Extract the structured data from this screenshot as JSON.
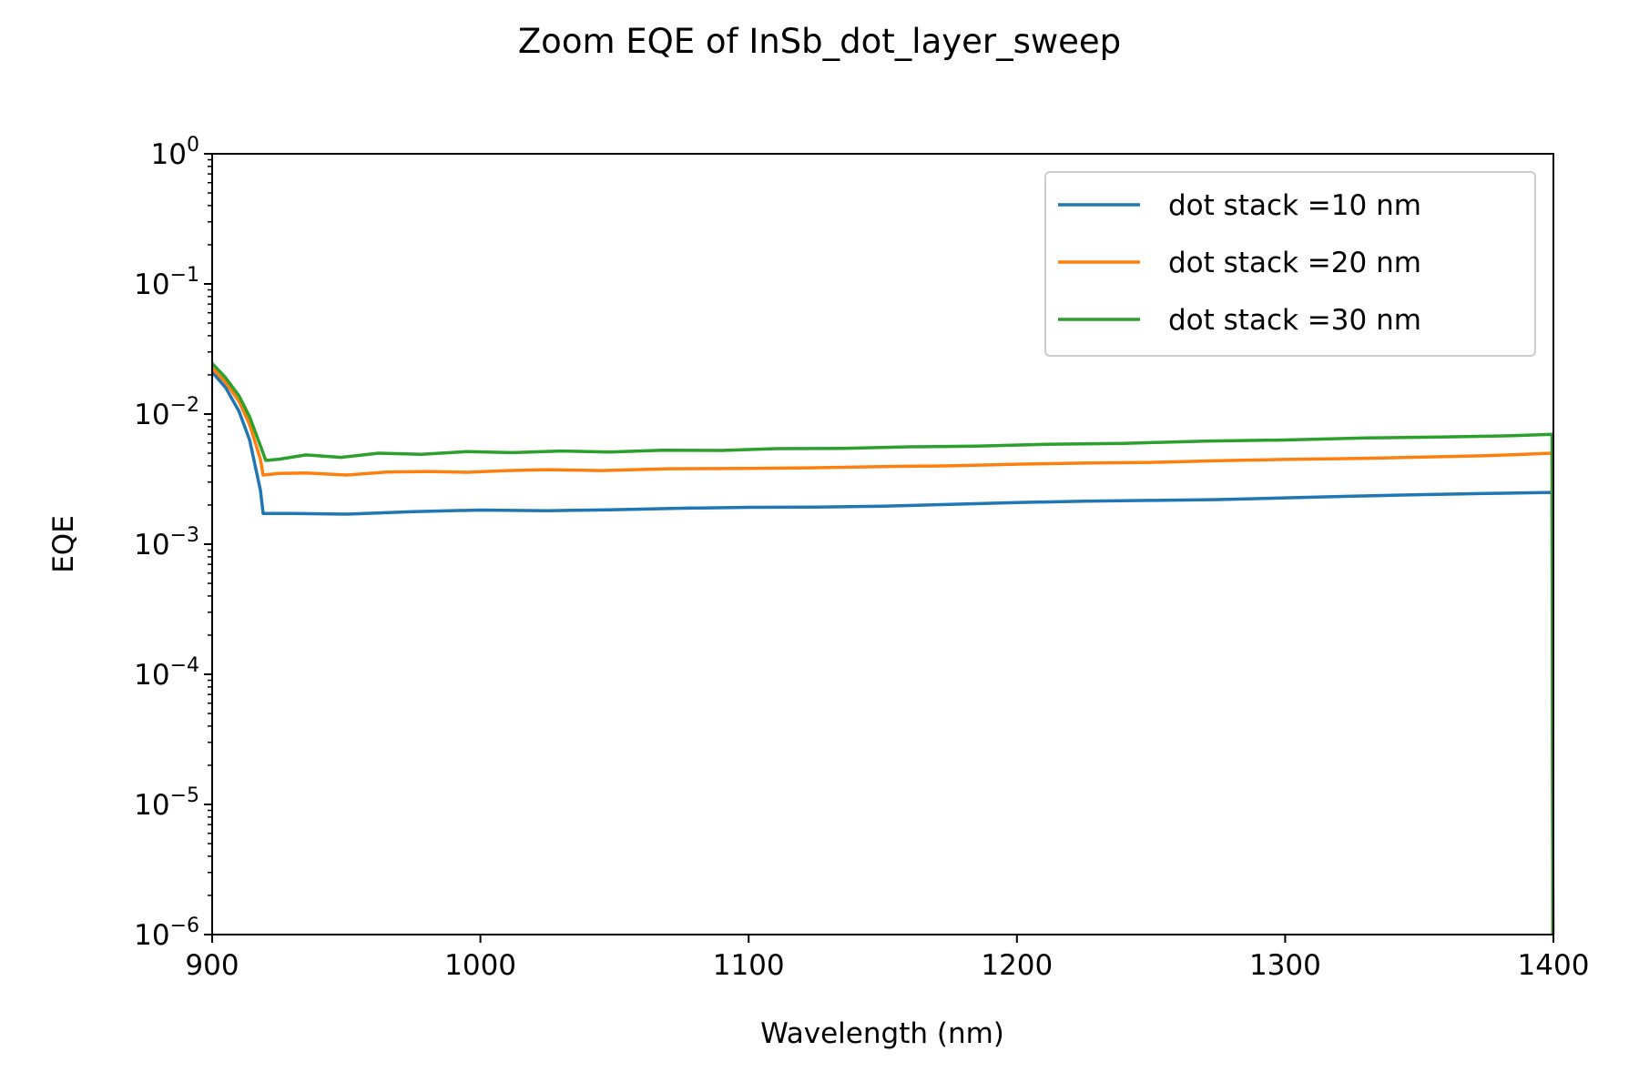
{
  "chart_data": {
    "type": "line",
    "title": "Zoom EQE of InSb_dot_layer_sweep",
    "xlabel": "Wavelength (nm)",
    "ylabel": "EQE",
    "xlim": [
      900,
      1400
    ],
    "ylim": [
      1e-06,
      1
    ],
    "yscale": "log",
    "grid": false,
    "legend_position": "top-right",
    "x_ticks": [
      {
        "value": 900,
        "label": "900"
      },
      {
        "value": 1000,
        "label": "1000"
      },
      {
        "value": 1100,
        "label": "1100"
      },
      {
        "value": 1200,
        "label": "1200"
      },
      {
        "value": 1300,
        "label": "1300"
      },
      {
        "value": 1400,
        "label": "1400"
      }
    ],
    "y_ticks": [
      {
        "value": 1e-06,
        "base": "10",
        "exponent": "−6"
      },
      {
        "value": 1e-05,
        "base": "10",
        "exponent": "−5"
      },
      {
        "value": 0.0001,
        "base": "10",
        "exponent": "−4"
      },
      {
        "value": 0.001,
        "base": "10",
        "exponent": "−3"
      },
      {
        "value": 0.01,
        "base": "10",
        "exponent": "−2"
      },
      {
        "value": 0.1,
        "base": "10",
        "exponent": "−1"
      },
      {
        "value": 1,
        "base": "10",
        "exponent": "0"
      }
    ],
    "series": [
      {
        "name": "dot stack =10 nm",
        "color": "#1f77b4",
        "points": [
          [
            900,
            0.021
          ],
          [
            905,
            0.016
          ],
          [
            910,
            0.0105
          ],
          [
            914,
            0.0063
          ],
          [
            918,
            0.0026
          ],
          [
            919,
            0.00172
          ],
          [
            930,
            0.00172
          ],
          [
            950,
            0.0017
          ],
          [
            975,
            0.00178
          ],
          [
            1000,
            0.00183
          ],
          [
            1025,
            0.00181
          ],
          [
            1050,
            0.00184
          ],
          [
            1075,
            0.00189
          ],
          [
            1100,
            0.00192
          ],
          [
            1125,
            0.00193
          ],
          [
            1150,
            0.00196
          ],
          [
            1175,
            0.00202
          ],
          [
            1200,
            0.00209
          ],
          [
            1225,
            0.00214
          ],
          [
            1250,
            0.00217
          ],
          [
            1275,
            0.0022
          ],
          [
            1300,
            0.00227
          ],
          [
            1325,
            0.00234
          ],
          [
            1350,
            0.0024
          ],
          [
            1375,
            0.00245
          ],
          [
            1399.5,
            0.0025
          ],
          [
            1399.8,
            1e-06
          ]
        ]
      },
      {
        "name": "dot stack =20 nm",
        "color": "#ff7f0e",
        "points": [
          [
            900,
            0.0225
          ],
          [
            905,
            0.0175
          ],
          [
            910,
            0.0125
          ],
          [
            914,
            0.0083
          ],
          [
            918,
            0.0045
          ],
          [
            919,
            0.0034
          ],
          [
            925,
            0.0035
          ],
          [
            935,
            0.00352
          ],
          [
            950,
            0.0034
          ],
          [
            965,
            0.00358
          ],
          [
            980,
            0.00362
          ],
          [
            995,
            0.00357
          ],
          [
            1010,
            0.00368
          ],
          [
            1025,
            0.00374
          ],
          [
            1045,
            0.00368
          ],
          [
            1070,
            0.0038
          ],
          [
            1100,
            0.00382
          ],
          [
            1125,
            0.00387
          ],
          [
            1150,
            0.00395
          ],
          [
            1175,
            0.004
          ],
          [
            1200,
            0.00412
          ],
          [
            1225,
            0.0042
          ],
          [
            1250,
            0.00425
          ],
          [
            1275,
            0.00438
          ],
          [
            1300,
            0.00448
          ],
          [
            1325,
            0.00455
          ],
          [
            1350,
            0.00466
          ],
          [
            1375,
            0.00478
          ],
          [
            1399.5,
            0.005
          ],
          [
            1399.8,
            1e-06
          ]
        ]
      },
      {
        "name": "dot stack =30 nm",
        "color": "#2ca02c",
        "points": [
          [
            900,
            0.0245
          ],
          [
            905,
            0.019
          ],
          [
            910,
            0.0138
          ],
          [
            914,
            0.0095
          ],
          [
            918,
            0.0057
          ],
          [
            920,
            0.0044
          ],
          [
            925,
            0.0045
          ],
          [
            935,
            0.00485
          ],
          [
            948,
            0.00465
          ],
          [
            962,
            0.005
          ],
          [
            978,
            0.0049
          ],
          [
            995,
            0.00515
          ],
          [
            1012,
            0.00505
          ],
          [
            1030,
            0.0052
          ],
          [
            1048,
            0.0051
          ],
          [
            1068,
            0.00528
          ],
          [
            1090,
            0.00525
          ],
          [
            1110,
            0.00542
          ],
          [
            1135,
            0.00545
          ],
          [
            1160,
            0.0056
          ],
          [
            1185,
            0.00566
          ],
          [
            1210,
            0.00585
          ],
          [
            1240,
            0.00595
          ],
          [
            1270,
            0.0062
          ],
          [
            1300,
            0.00632
          ],
          [
            1330,
            0.00655
          ],
          [
            1360,
            0.00668
          ],
          [
            1385,
            0.00682
          ],
          [
            1399.5,
            0.007
          ],
          [
            1399.8,
            1e-06
          ]
        ]
      }
    ]
  }
}
